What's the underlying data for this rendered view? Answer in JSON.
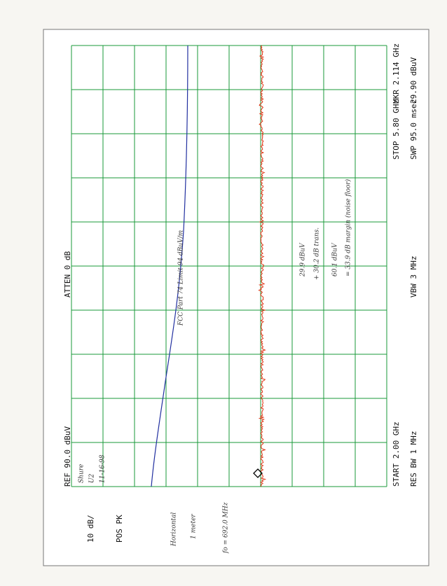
{
  "header": {
    "ref": "REF  90.0 dBuV",
    "atten": "ATTEN 0 dB",
    "marker_freq": "MKR 2.114 GHz",
    "marker_level": "29.90 dBuV"
  },
  "footer": {
    "scale": "10 dB/",
    "detector": "POS PK",
    "start": "START 2.00 GHz",
    "stop": "STOP 5.80 GHz",
    "rbw": "RES BW 1 MHz",
    "vbw": "VBW 3 MHz",
    "sweep": "SWP 95.0 msec"
  },
  "notes": {
    "device": [
      "Shure",
      "U2",
      "11-16-98"
    ],
    "polarization": [
      "Horizontal",
      "1 meter"
    ],
    "fo": "fo = 692.0 MHz",
    "limit": "FCC Part 74 Limit 94 dBuV/m",
    "calc1": [
      "29.9 dBuV",
      "+ 30.2 dB trans."
    ],
    "calc2": [
      "60.1 dBuV",
      "= 33.9 dB margin (noise floor)"
    ]
  }
}
